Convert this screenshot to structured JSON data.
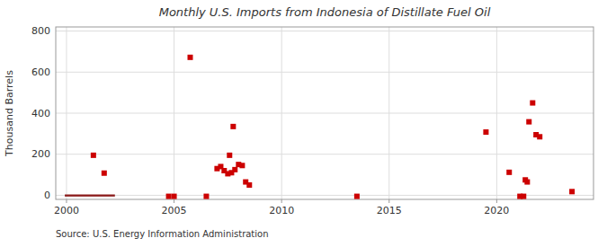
{
  "chart_data": {
    "type": "scatter",
    "title": "Monthly U.S. Imports from Indonesia of Distillate Fuel Oil",
    "ylabel": "Thousand Barrels",
    "annotation": "Source: U.S. Energy Information Administration",
    "xlim": [
      1999.5,
      2024.5
    ],
    "ylim": [
      -20,
      820
    ],
    "xticks": [
      2000,
      2005,
      2010,
      2015,
      2020
    ],
    "yticks": [
      0,
      200,
      400,
      600,
      800
    ],
    "grid": true,
    "marker": "square",
    "color": "#cc0000",
    "x": [
      2001.25,
      2001.75,
      2004.75,
      2005.0,
      2005.75,
      2006.5,
      2007.0,
      2007.17,
      2007.33,
      2007.5,
      2007.58,
      2007.67,
      2007.75,
      2007.83,
      2008.0,
      2008.17,
      2008.33,
      2008.5,
      2013.5,
      2019.5,
      2020.58,
      2021.08,
      2021.25,
      2021.33,
      2021.42,
      2021.5,
      2021.67,
      2021.83,
      2022.0,
      2023.5
    ],
    "values": [
      195,
      108,
      -5,
      -5,
      672,
      -5,
      130,
      140,
      120,
      105,
      195,
      110,
      335,
      125,
      150,
      145,
      65,
      50,
      -5,
      308,
      112,
      -5,
      -5,
      75,
      65,
      358,
      450,
      295,
      285,
      18
    ],
    "bar": {
      "x0": 1999.92,
      "x1": 2002.25,
      "y": -6,
      "height": 10,
      "color": "#8b1a1a"
    }
  }
}
